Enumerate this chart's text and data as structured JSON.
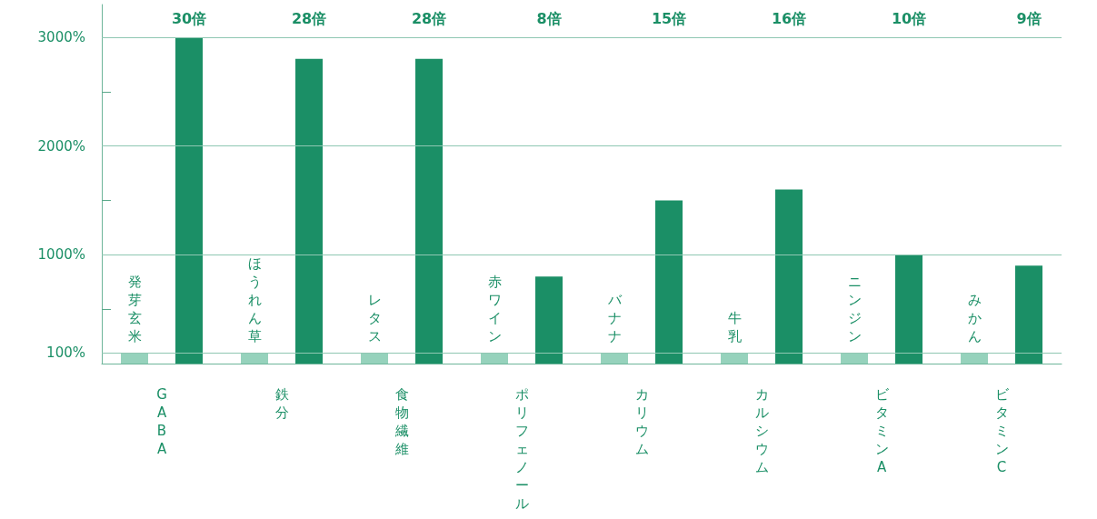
{
  "chart_data": {
    "type": "bar",
    "categories": [
      "GABA",
      "鉄分",
      "食物繊維",
      "ポリフェノール",
      "カリウム",
      "カルシウム",
      "ビタミンA",
      "ビタミンC"
    ],
    "series": [
      {
        "color": "#96d2bc",
        "values": [
          100,
          100,
          100,
          100,
          100,
          100,
          100,
          100
        ],
        "value_labels": [
          "発芽玄米",
          "ほうれん草",
          "レタス",
          "赤ワイン",
          "バナナ",
          "牛乳",
          "ニンジン",
          "みかん"
        ]
      },
      {
        "color": "#1b8f66",
        "values": [
          3000,
          2800,
          2800,
          800,
          1500,
          1600,
          1000,
          900
        ]
      }
    ],
    "annotations": [
      "30倍",
      "28倍",
      "28倍",
      "8倍",
      "15倍",
      "16倍",
      "10倍",
      "9倍"
    ],
    "ylim": [
      0,
      3300
    ],
    "yticks": [
      {
        "value": 100,
        "label": "100%"
      },
      {
        "value": 500,
        "label": null
      },
      {
        "value": 1000,
        "label": "1000%"
      },
      {
        "value": 1500,
        "label": null
      },
      {
        "value": 2000,
        "label": "2000%"
      },
      {
        "value": 2500,
        "label": null
      },
      {
        "value": 3000,
        "label": "3000%"
      }
    ],
    "grid": "y"
  }
}
